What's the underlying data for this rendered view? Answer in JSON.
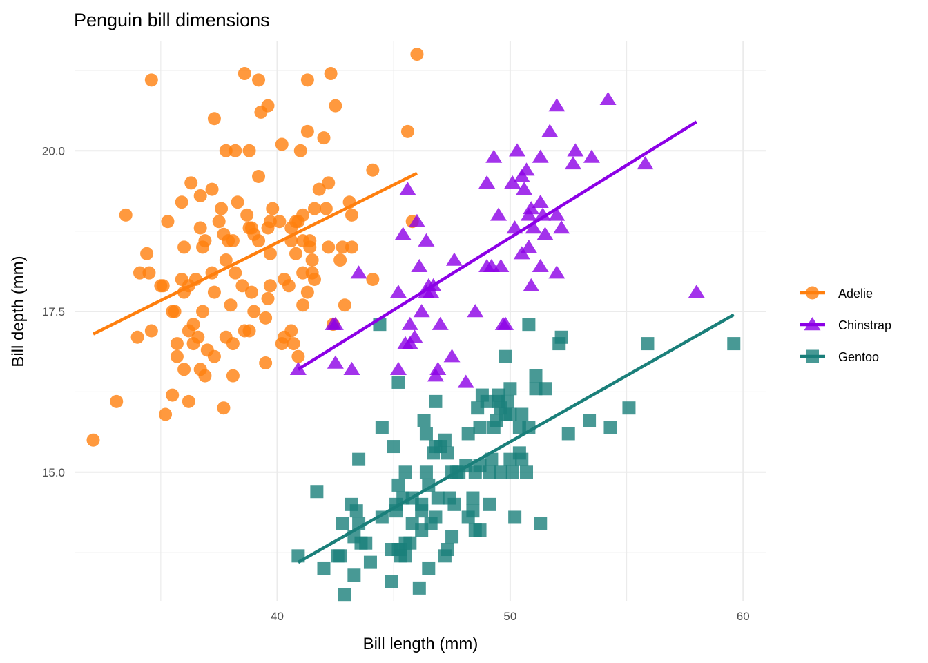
{
  "chart_data": {
    "type": "scatter",
    "title": "Penguin bill dimensions",
    "xlabel": "Bill length (mm)",
    "ylabel": "Bill depth (mm)",
    "xlim": [
      31.3,
      61.0
    ],
    "ylim": [
      13.0,
      21.7
    ],
    "x_ticks": [
      40,
      50,
      60
    ],
    "x_tick_labels": [
      "40",
      "50",
      "60"
    ],
    "y_ticks": [
      15.0,
      17.5,
      20.0
    ],
    "y_tick_labels": [
      "15.0",
      "17.5",
      "20.0"
    ],
    "x_minor_ticks": [
      35,
      45,
      55
    ],
    "y_minor_ticks": [
      13.75,
      16.25,
      18.75,
      21.25
    ],
    "grid": true,
    "legend_position": "right",
    "series": [
      {
        "name": "Adelie",
        "color": "#FF7F0E",
        "marker": "circle",
        "fit_line": {
          "x": [
            32.1,
            46.0
          ],
          "y": [
            17.15,
            19.65
          ]
        },
        "points": [
          [
            32.1,
            15.5
          ],
          [
            33.1,
            16.1
          ],
          [
            33.5,
            19.0
          ],
          [
            34.0,
            17.1
          ],
          [
            34.1,
            18.1
          ],
          [
            34.4,
            18.4
          ],
          [
            34.5,
            18.1
          ],
          [
            34.6,
            21.1
          ],
          [
            34.6,
            17.2
          ],
          [
            35.0,
            17.9
          ],
          [
            35.1,
            17.9
          ],
          [
            35.2,
            15.9
          ],
          [
            35.3,
            18.9
          ],
          [
            35.5,
            17.5
          ],
          [
            35.5,
            16.2
          ],
          [
            35.6,
            17.5
          ],
          [
            35.7,
            17.0
          ],
          [
            35.7,
            16.8
          ],
          [
            35.9,
            18.0
          ],
          [
            35.9,
            19.2
          ],
          [
            36.0,
            17.8
          ],
          [
            36.0,
            18.5
          ],
          [
            36.0,
            16.6
          ],
          [
            36.2,
            17.2
          ],
          [
            36.2,
            17.9
          ],
          [
            36.2,
            16.1
          ],
          [
            36.3,
            19.5
          ],
          [
            36.4,
            17.0
          ],
          [
            36.4,
            17.3
          ],
          [
            36.5,
            18.0
          ],
          [
            36.6,
            17.1
          ],
          [
            36.7,
            16.6
          ],
          [
            36.7,
            19.3
          ],
          [
            36.7,
            18.8
          ],
          [
            36.8,
            18.5
          ],
          [
            36.8,
            17.5
          ],
          [
            36.9,
            18.6
          ],
          [
            36.9,
            16.5
          ],
          [
            37.0,
            16.9
          ],
          [
            37.2,
            19.4
          ],
          [
            37.2,
            18.1
          ],
          [
            37.3,
            16.8
          ],
          [
            37.3,
            20.5
          ],
          [
            37.3,
            17.8
          ],
          [
            37.5,
            18.9
          ],
          [
            37.6,
            19.1
          ],
          [
            37.7,
            18.7
          ],
          [
            37.7,
            16.0
          ],
          [
            37.8,
            18.3
          ],
          [
            37.8,
            17.1
          ],
          [
            37.8,
            20.0
          ],
          [
            37.9,
            18.6
          ],
          [
            38.0,
            17.6
          ],
          [
            38.1,
            18.6
          ],
          [
            38.1,
            16.5
          ],
          [
            38.1,
            17.0
          ],
          [
            38.2,
            18.1
          ],
          [
            38.2,
            20.0
          ],
          [
            38.3,
            19.2
          ],
          [
            38.5,
            17.9
          ],
          [
            38.6,
            21.2
          ],
          [
            38.6,
            17.2
          ],
          [
            38.7,
            19.0
          ],
          [
            38.8,
            17.2
          ],
          [
            38.8,
            18.8
          ],
          [
            38.8,
            20.0
          ],
          [
            38.9,
            17.8
          ],
          [
            38.9,
            18.8
          ],
          [
            39.0,
            17.5
          ],
          [
            39.0,
            18.7
          ],
          [
            39.2,
            21.1
          ],
          [
            39.2,
            18.6
          ],
          [
            39.2,
            19.6
          ],
          [
            39.3,
            20.6
          ],
          [
            39.5,
            17.4
          ],
          [
            39.5,
            16.7
          ],
          [
            39.6,
            17.7
          ],
          [
            39.6,
            18.8
          ],
          [
            39.6,
            20.7
          ],
          [
            39.7,
            17.9
          ],
          [
            39.7,
            18.4
          ],
          [
            39.7,
            18.9
          ],
          [
            39.8,
            19.1
          ],
          [
            40.1,
            18.9
          ],
          [
            40.2,
            17.0
          ],
          [
            40.2,
            20.1
          ],
          [
            40.3,
            18.0
          ],
          [
            40.3,
            17.1
          ],
          [
            40.5,
            17.9
          ],
          [
            40.6,
            18.6
          ],
          [
            40.6,
            18.8
          ],
          [
            40.6,
            17.2
          ],
          [
            40.7,
            17.0
          ],
          [
            40.8,
            18.4
          ],
          [
            40.8,
            18.9
          ],
          [
            40.9,
            16.8
          ],
          [
            40.9,
            18.9
          ],
          [
            41.0,
            20.0
          ],
          [
            41.1,
            18.1
          ],
          [
            41.1,
            19.0
          ],
          [
            41.1,
            17.6
          ],
          [
            41.1,
            18.6
          ],
          [
            41.3,
            17.8
          ],
          [
            41.3,
            20.3
          ],
          [
            41.3,
            21.1
          ],
          [
            41.4,
            18.5
          ],
          [
            41.4,
            18.6
          ],
          [
            41.5,
            18.3
          ],
          [
            41.5,
            18.1
          ],
          [
            41.6,
            18.0
          ],
          [
            41.6,
            19.1
          ],
          [
            41.8,
            19.4
          ],
          [
            42.0,
            20.2
          ],
          [
            42.1,
            19.1
          ],
          [
            42.2,
            19.5
          ],
          [
            42.2,
            18.5
          ],
          [
            42.3,
            21.2
          ],
          [
            42.4,
            17.3
          ],
          [
            42.5,
            20.7
          ],
          [
            42.7,
            18.3
          ],
          [
            42.8,
            18.5
          ],
          [
            42.9,
            17.6
          ],
          [
            43.1,
            19.2
          ],
          [
            43.2,
            18.5
          ],
          [
            43.2,
            19.0
          ],
          [
            44.1,
            19.7
          ],
          [
            44.1,
            18.0
          ],
          [
            45.6,
            20.3
          ],
          [
            45.8,
            18.9
          ],
          [
            46.0,
            21.5
          ]
        ]
      },
      {
        "name": "Chinstrap",
        "color": "#8C00E6",
        "marker": "triangle",
        "fit_line": {
          "x": [
            40.9,
            58.0
          ],
          "y": [
            16.6,
            20.45
          ]
        },
        "points": [
          [
            40.9,
            16.6
          ],
          [
            42.4,
            17.3
          ],
          [
            42.5,
            17.3
          ],
          [
            42.5,
            16.7
          ],
          [
            43.2,
            16.6
          ],
          [
            43.5,
            18.1
          ],
          [
            45.2,
            17.8
          ],
          [
            45.4,
            18.7
          ],
          [
            45.2,
            16.6
          ],
          [
            45.5,
            17.0
          ],
          [
            45.6,
            19.4
          ],
          [
            45.7,
            17.3
          ],
          [
            45.7,
            17.0
          ],
          [
            45.9,
            17.1
          ],
          [
            46.0,
            18.9
          ],
          [
            46.1,
            18.2
          ],
          [
            46.2,
            17.5
          ],
          [
            46.4,
            18.6
          ],
          [
            46.4,
            17.8
          ],
          [
            46.5,
            17.9
          ],
          [
            46.6,
            17.8
          ],
          [
            46.7,
            17.9
          ],
          [
            46.8,
            16.5
          ],
          [
            46.9,
            16.6
          ],
          [
            47.0,
            17.3
          ],
          [
            47.5,
            16.8
          ],
          [
            47.6,
            18.3
          ],
          [
            48.1,
            16.4
          ],
          [
            48.5,
            17.5
          ],
          [
            49.0,
            19.5
          ],
          [
            49.0,
            18.2
          ],
          [
            49.2,
            18.2
          ],
          [
            49.3,
            19.9
          ],
          [
            49.5,
            19.0
          ],
          [
            49.6,
            18.2
          ],
          [
            49.7,
            17.3
          ],
          [
            49.8,
            17.3
          ],
          [
            50.1,
            19.5
          ],
          [
            50.2,
            18.8
          ],
          [
            50.3,
            20.0
          ],
          [
            50.5,
            18.4
          ],
          [
            50.5,
            19.6
          ],
          [
            50.6,
            19.4
          ],
          [
            50.7,
            19.7
          ],
          [
            50.8,
            18.5
          ],
          [
            50.8,
            19.0
          ],
          [
            50.9,
            17.9
          ],
          [
            50.9,
            19.1
          ],
          [
            51.0,
            18.8
          ],
          [
            51.3,
            18.2
          ],
          [
            51.3,
            19.2
          ],
          [
            51.3,
            19.9
          ],
          [
            51.4,
            19.0
          ],
          [
            51.5,
            18.7
          ],
          [
            51.7,
            20.3
          ],
          [
            52.0,
            18.1
          ],
          [
            52.0,
            19.0
          ],
          [
            52.0,
            20.7
          ],
          [
            52.2,
            18.8
          ],
          [
            52.7,
            19.8
          ],
          [
            52.8,
            20.0
          ],
          [
            53.5,
            19.9
          ],
          [
            54.2,
            20.8
          ],
          [
            55.8,
            19.8
          ],
          [
            58.0,
            17.8
          ]
        ]
      },
      {
        "name": "Gentoo",
        "color": "#1A7F7A",
        "marker": "square",
        "fit_line": {
          "x": [
            40.9,
            59.6
          ],
          "y": [
            13.6,
            17.45
          ]
        },
        "points": [
          [
            40.9,
            13.7
          ],
          [
            41.7,
            14.7
          ],
          [
            42.0,
            13.5
          ],
          [
            42.6,
            13.7
          ],
          [
            42.7,
            13.7
          ],
          [
            42.8,
            14.2
          ],
          [
            42.9,
            13.1
          ],
          [
            43.2,
            14.5
          ],
          [
            43.3,
            14.0
          ],
          [
            43.3,
            13.4
          ],
          [
            43.4,
            14.4
          ],
          [
            43.5,
            14.2
          ],
          [
            43.5,
            15.2
          ],
          [
            43.6,
            13.9
          ],
          [
            43.8,
            13.9
          ],
          [
            44.0,
            13.6
          ],
          [
            44.4,
            17.3
          ],
          [
            44.5,
            14.3
          ],
          [
            44.5,
            15.7
          ],
          [
            44.9,
            13.8
          ],
          [
            44.9,
            13.3
          ],
          [
            45.0,
            15.4
          ],
          [
            45.1,
            14.5
          ],
          [
            45.1,
            14.4
          ],
          [
            45.2,
            13.8
          ],
          [
            45.2,
            14.8
          ],
          [
            45.2,
            16.4
          ],
          [
            45.3,
            13.7
          ],
          [
            45.3,
            13.8
          ],
          [
            45.4,
            14.6
          ],
          [
            45.5,
            13.7
          ],
          [
            45.5,
            15.0
          ],
          [
            45.5,
            13.9
          ],
          [
            45.7,
            13.9
          ],
          [
            45.8,
            14.6
          ],
          [
            45.8,
            14.2
          ],
          [
            46.1,
            13.2
          ],
          [
            46.2,
            14.1
          ],
          [
            46.2,
            14.5
          ],
          [
            46.2,
            14.4
          ],
          [
            46.3,
            15.8
          ],
          [
            46.4,
            15.0
          ],
          [
            46.4,
            15.6
          ],
          [
            46.5,
            13.5
          ],
          [
            46.5,
            14.8
          ],
          [
            46.6,
            14.2
          ],
          [
            46.7,
            15.3
          ],
          [
            46.8,
            14.3
          ],
          [
            46.8,
            15.4
          ],
          [
            46.8,
            16.1
          ],
          [
            46.9,
            14.6
          ],
          [
            47.0,
            15.4
          ],
          [
            47.2,
            13.7
          ],
          [
            47.2,
            15.5
          ],
          [
            47.3,
            13.8
          ],
          [
            47.3,
            15.3
          ],
          [
            47.4,
            14.6
          ],
          [
            47.5,
            14.0
          ],
          [
            47.5,
            15.0
          ],
          [
            47.6,
            14.5
          ],
          [
            47.7,
            15.0
          ],
          [
            47.8,
            15.0
          ],
          [
            48.1,
            15.1
          ],
          [
            48.2,
            14.3
          ],
          [
            48.2,
            15.6
          ],
          [
            48.4,
            14.4
          ],
          [
            48.4,
            14.6
          ],
          [
            48.5,
            14.1
          ],
          [
            48.5,
            15.0
          ],
          [
            48.6,
            16.0
          ],
          [
            48.7,
            14.1
          ],
          [
            48.7,
            15.1
          ],
          [
            48.7,
            15.7
          ],
          [
            48.8,
            16.2
          ],
          [
            49.0,
            16.1
          ],
          [
            49.1,
            14.5
          ],
          [
            49.1,
            15.0
          ],
          [
            49.2,
            15.2
          ],
          [
            49.3,
            15.7
          ],
          [
            49.4,
            15.8
          ],
          [
            49.5,
            16.1
          ],
          [
            49.5,
            16.2
          ],
          [
            49.6,
            15.0
          ],
          [
            49.6,
            16.0
          ],
          [
            49.8,
            15.9
          ],
          [
            49.8,
            16.8
          ],
          [
            49.9,
            16.1
          ],
          [
            50.0,
            15.2
          ],
          [
            50.0,
            15.9
          ],
          [
            50.0,
            16.3
          ],
          [
            50.1,
            15.0
          ],
          [
            50.2,
            14.3
          ],
          [
            50.4,
            15.3
          ],
          [
            50.4,
            15.7
          ],
          [
            50.5,
            15.2
          ],
          [
            50.5,
            15.9
          ],
          [
            50.7,
            15.0
          ],
          [
            50.8,
            15.7
          ],
          [
            50.8,
            17.3
          ],
          [
            51.1,
            16.3
          ],
          [
            51.1,
            16.5
          ],
          [
            51.3,
            14.2
          ],
          [
            51.5,
            16.3
          ],
          [
            52.1,
            17.0
          ],
          [
            52.2,
            17.1
          ],
          [
            52.5,
            15.6
          ],
          [
            53.4,
            15.8
          ],
          [
            54.3,
            15.7
          ],
          [
            55.1,
            16.0
          ],
          [
            55.9,
            17.0
          ],
          [
            59.6,
            17.0
          ]
        ]
      }
    ]
  }
}
